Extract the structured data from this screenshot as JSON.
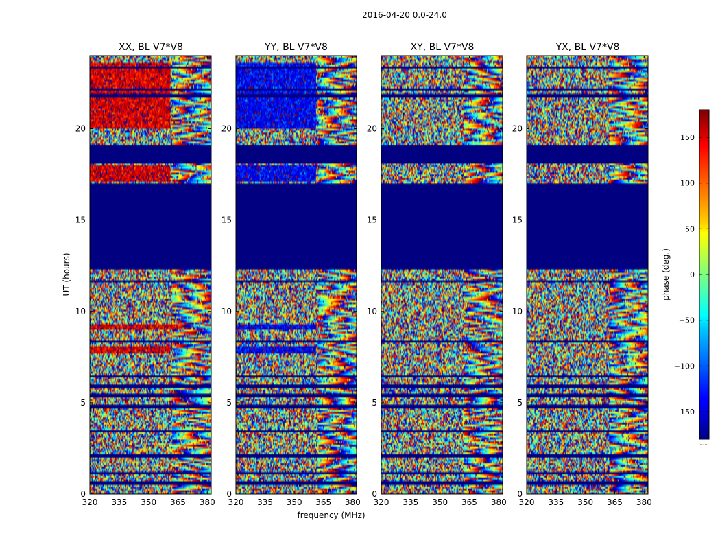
{
  "figure": {
    "suptitle": "2016-04-20 0.0-24.0"
  },
  "chart_data": [
    {
      "type": "heatmap",
      "title": "XX, BL V7*V8",
      "xlabel": "frequency (MHz)",
      "ylabel": "UT (hours)",
      "xlim": [
        320,
        382
      ],
      "ylim": [
        0,
        24
      ],
      "xticks": [
        320,
        335,
        350,
        365,
        380
      ],
      "yticks": [
        0,
        5,
        10,
        15,
        20
      ],
      "phase_bias_deg": [
        {
          "ut_from": 20.0,
          "ut_to": 23.6,
          "freq_to": 361,
          "value": 150
        },
        {
          "ut_from": 17.1,
          "ut_to": 18.0,
          "freq_to": 361,
          "value": 150
        },
        {
          "ut_from": 9.0,
          "ut_to": 9.3,
          "freq_to": 365,
          "value": 150
        },
        {
          "ut_from": 7.7,
          "ut_to": 8.1,
          "freq_to": 361,
          "value": 150
        }
      ]
    },
    {
      "type": "heatmap",
      "title": "YY, BL V7*V8",
      "xlabel": "frequency (MHz)",
      "ylabel": "",
      "xlim": [
        320,
        382
      ],
      "ylim": [
        0,
        24
      ],
      "xticks": [
        320,
        335,
        350,
        365,
        380
      ],
      "yticks": [
        0,
        5,
        10,
        15,
        20
      ],
      "phase_bias_deg": [
        {
          "ut_from": 20.0,
          "ut_to": 23.6,
          "freq_to": 361,
          "value": -140
        },
        {
          "ut_from": 17.1,
          "ut_to": 18.0,
          "freq_to": 361,
          "value": -140
        },
        {
          "ut_from": 9.0,
          "ut_to": 9.3,
          "freq_to": 361,
          "value": -140
        },
        {
          "ut_from": 7.7,
          "ut_to": 8.1,
          "freq_to": 361,
          "value": -140
        }
      ]
    },
    {
      "type": "heatmap",
      "title": "XY, BL V7*V8",
      "xlabel": "",
      "ylabel": "",
      "xlim": [
        320,
        382
      ],
      "ylim": [
        0,
        24
      ],
      "xticks": [
        320,
        335,
        350,
        365,
        380
      ],
      "yticks": [
        0,
        5,
        10,
        15,
        20
      ],
      "phase_bias_deg": []
    },
    {
      "type": "heatmap",
      "title": "YX, BL V7*V8",
      "xlabel": "",
      "ylabel": "",
      "xlim": [
        320,
        382
      ],
      "ylim": [
        0,
        24
      ],
      "xticks": [
        320,
        335,
        350,
        365,
        380
      ],
      "yticks": [
        0,
        5,
        10,
        15,
        20
      ],
      "phase_bias_deg": []
    }
  ],
  "flagged_ut_ranges": [
    [
      12.3,
      17.0
    ],
    [
      18.2,
      19.1
    ],
    [
      21.7,
      21.9
    ]
  ],
  "thin_gap_ut": [
    23.4,
    22.1,
    21.3,
    19.3,
    18.1,
    12.3,
    11.7,
    10.1,
    8.8,
    8.3,
    7.5,
    7.1,
    6.5,
    5.9,
    5.4,
    4.8,
    4.1,
    3.5,
    3.0,
    2.1,
    1.2,
    0.6
  ],
  "colorbar": {
    "label": "phase (deg.)",
    "ticks": [
      150,
      100,
      50,
      0,
      -50,
      -100,
      -150
    ],
    "tick_labels": [
      "150",
      "100",
      "50",
      "0",
      "−50",
      "−100",
      "−150"
    ],
    "vmin": -180,
    "vmax": 180,
    "colormap": "jet",
    "bottom_text": "....."
  },
  "colors": {
    "masked": "#00007f",
    "axes": "#000000",
    "background": "#ffffff"
  }
}
